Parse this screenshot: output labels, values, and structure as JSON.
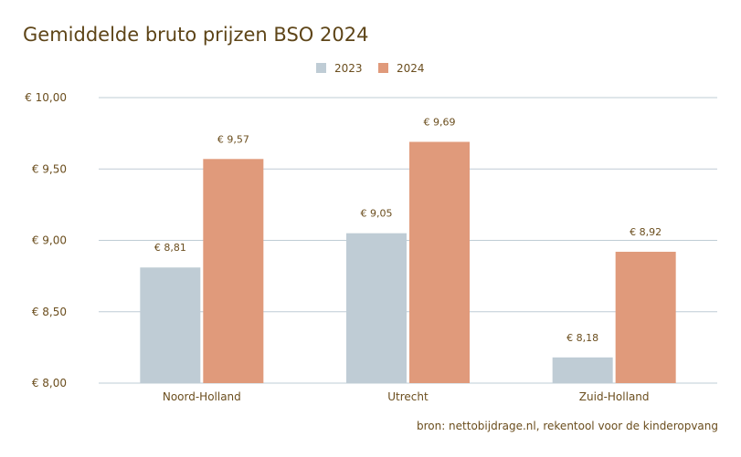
{
  "chart_data": {
    "type": "bar",
    "title": "Gemiddelde bruto prijzen BSO 2024",
    "categories": [
      "Noord-Holland",
      "Utrecht",
      "Zuid-Holland"
    ],
    "series": [
      {
        "name": "2023",
        "values": [
          8.81,
          9.05,
          8.18
        ],
        "labels": [
          "€ 8,81",
          "€ 9,05",
          "€ 8,18"
        ],
        "color": "#bfccd5"
      },
      {
        "name": "2024",
        "values": [
          9.57,
          9.69,
          8.92
        ],
        "labels": [
          "€ 9,57",
          "€ 9,69",
          "€ 8,92"
        ],
        "color": "#e09a7b"
      }
    ],
    "ylim": [
      8,
      10
    ],
    "yticks": [
      8,
      8.5,
      9,
      9.5,
      10
    ],
    "ytick_labels": [
      "€ 8,00",
      "€ 8,50",
      "€ 9,00",
      "€ 9,50",
      "€ 10,00"
    ],
    "grid": true,
    "legend": "top-center",
    "xlabel": "",
    "ylabel": ""
  },
  "source": "bron: nettobijdrage.nl, rekentool voor de kinderopvang"
}
